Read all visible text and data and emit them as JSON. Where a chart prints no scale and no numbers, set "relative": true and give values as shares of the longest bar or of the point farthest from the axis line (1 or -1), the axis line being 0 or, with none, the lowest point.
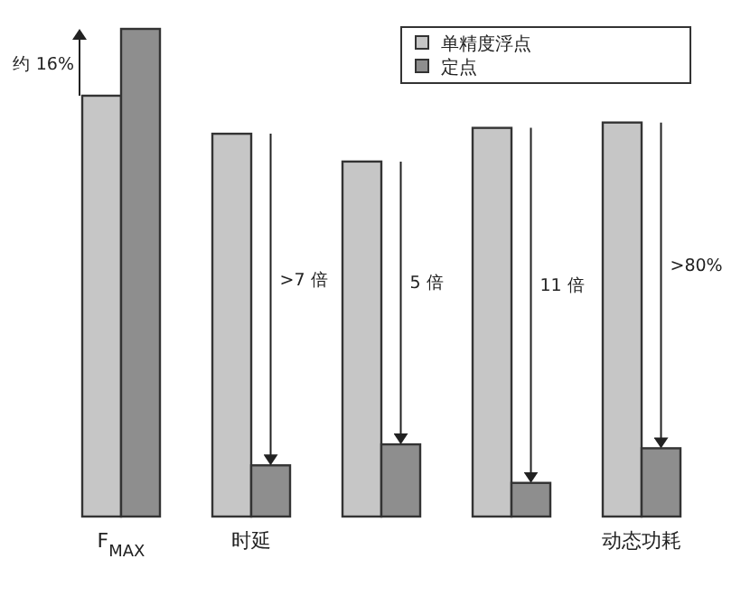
{
  "chart_data": {
    "type": "bar",
    "relative": true,
    "categories": [
      "F$_{MAX}$",
      "时延",
      null,
      null,
      "动态功耗"
    ],
    "series": [
      {
        "name": "单精度浮点",
        "color": "#c6c6c6",
        "values": [
          0.863,
          0.785,
          0.728,
          0.797,
          0.808
        ]
      },
      {
        "name": "定点",
        "color": "#8e8e8e",
        "values": [
          1.0,
          0.105,
          0.148,
          0.069,
          0.14
        ]
      }
    ],
    "annotations": [
      "约 16%",
      ">7 倍",
      "5 倍",
      "11 倍",
      ">80%"
    ],
    "legend": "top right"
  }
}
